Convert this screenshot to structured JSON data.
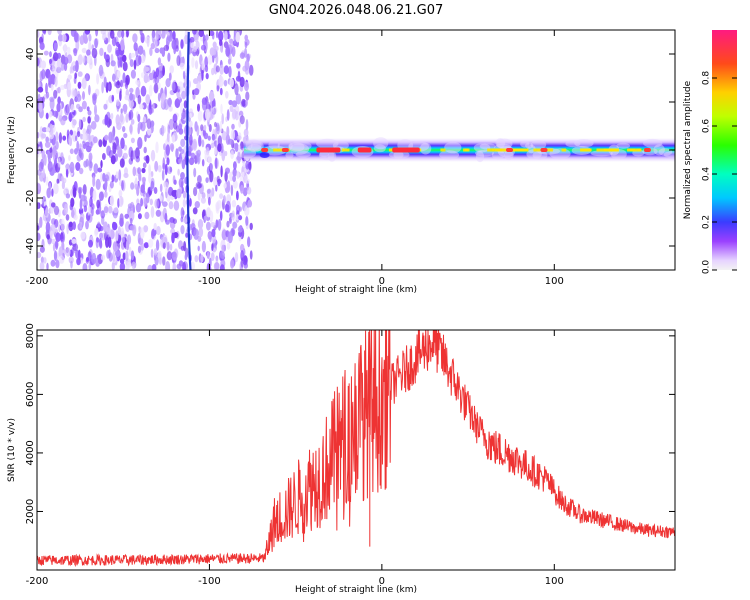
{
  "title": "GN04.2026.048.06.21.G07",
  "chart_data": [
    {
      "type": "heatmap",
      "name": "spectrogram",
      "xlabel": "Height of straight line (km)",
      "ylabel": "Frequency (Hz)",
      "xlim": [
        -200,
        170
      ],
      "ylim": [
        -50,
        50
      ],
      "xticks": [
        -200,
        -100,
        0,
        100
      ],
      "yticks": [
        -40,
        -20,
        0,
        20,
        40
      ],
      "noise_region_x": [
        -200,
        -78
      ],
      "signal_line_frequency": 0,
      "high_amplitude_segments": [
        {
          "x0": -38,
          "x1": -24,
          "amplitude": 0.95
        },
        {
          "x0": -14,
          "x1": -6,
          "amplitude": 0.85
        },
        {
          "x0": 6,
          "x1": 22,
          "amplitude": 0.95
        }
      ],
      "colorbar": {
        "label": "Normalized spectral amplitude",
        "range": [
          0.0,
          1.0
        ],
        "ticks": [
          0.0,
          0.2,
          0.4,
          0.6,
          0.8
        ]
      }
    },
    {
      "type": "line",
      "name": "snr",
      "xlabel": "Height of straight line (km)",
      "ylabel": "SNR (10 * v/v)",
      "xlim": [
        -200,
        170
      ],
      "ylim": [
        0,
        8200
      ],
      "xticks": [
        -200,
        -100,
        0,
        100
      ],
      "yticks": [
        2000,
        4000,
        6000,
        8000
      ],
      "color": "#ee3333",
      "profile_x": [
        -200,
        -150,
        -100,
        -68,
        -62,
        -55,
        -45,
        -35,
        -25,
        -15,
        -5,
        5,
        15,
        25,
        30,
        35,
        45,
        55,
        65,
        75,
        85,
        95,
        105,
        115,
        125,
        135,
        145,
        155,
        170
      ],
      "profile_y": [
        330,
        340,
        380,
        400,
        1700,
        2000,
        2700,
        3200,
        4200,
        5100,
        5600,
        6300,
        6900,
        7600,
        7800,
        7300,
        6100,
        4900,
        4200,
        3900,
        3500,
        3100,
        2300,
        1900,
        1750,
        1600,
        1450,
        1350,
        1300
      ]
    }
  ]
}
